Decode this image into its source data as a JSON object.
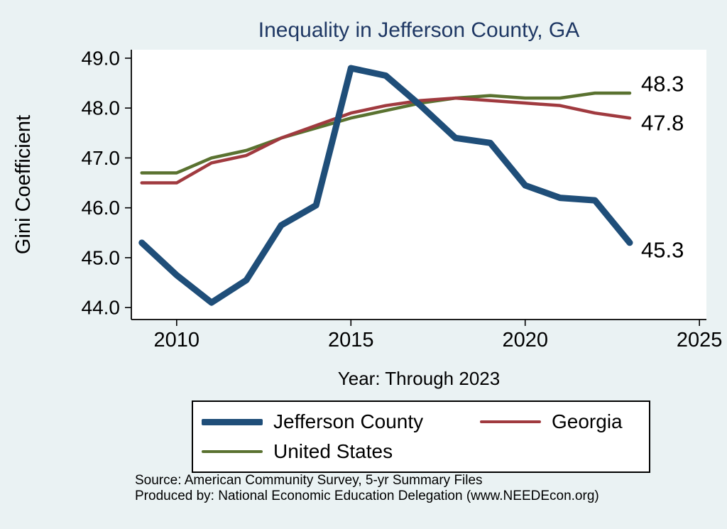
{
  "chart_data": {
    "type": "line",
    "title": "Inequality in Jefferson County, GA",
    "xlabel": "Year: Through 2023",
    "ylabel": "Gini Coefficient",
    "grid": false,
    "legend_position": "bottom",
    "x": [
      2009,
      2010,
      2011,
      2012,
      2013,
      2014,
      2015,
      2016,
      2017,
      2018,
      2019,
      2020,
      2021,
      2022,
      2023
    ],
    "xticks": [
      2010,
      2015,
      2020,
      2025
    ],
    "yticks": [
      44,
      45,
      46,
      47,
      48,
      49
    ],
    "ytick_labels": [
      "44.0",
      "45.0",
      "46.0",
      "47.0",
      "48.0",
      "49.0"
    ],
    "xlim": [
      2008.7,
      2025.2
    ],
    "ylim": [
      43.76,
      49.17
    ],
    "series": [
      {
        "name": "Jefferson County",
        "color": "#1f4e79",
        "line_width": 9,
        "end_label": "45.3",
        "values": [
          45.3,
          44.65,
          44.1,
          44.55,
          45.65,
          46.05,
          48.8,
          48.65,
          48.05,
          47.4,
          47.3,
          46.45,
          46.2,
          46.15,
          45.3
        ]
      },
      {
        "name": "Georgia",
        "color": "#a03a3f",
        "line_width": 4.5,
        "end_label": "47.8",
        "values": [
          46.5,
          46.5,
          46.9,
          47.05,
          47.4,
          47.65,
          47.9,
          48.05,
          48.15,
          48.2,
          48.15,
          48.1,
          48.05,
          47.9,
          47.8
        ]
      },
      {
        "name": "United States",
        "color": "#5a7230",
        "line_width": 4.5,
        "end_label": "48.3",
        "values": [
          46.7,
          46.7,
          47.0,
          47.15,
          47.4,
          47.6,
          47.8,
          47.95,
          48.1,
          48.2,
          48.25,
          48.2,
          48.2,
          48.3,
          48.3
        ]
      }
    ]
  },
  "footer": {
    "source": "Source: American Community Survey, 5-yr Summary Files",
    "produced_by": "Produced by: National Economic Education Delegation (www.NEEDEcon.org)"
  },
  "colors": {
    "background": "#eaf2f3",
    "plot_background": "#ffffff",
    "title": "#1f3864",
    "axis": "#000000",
    "end_label": "#000000"
  }
}
